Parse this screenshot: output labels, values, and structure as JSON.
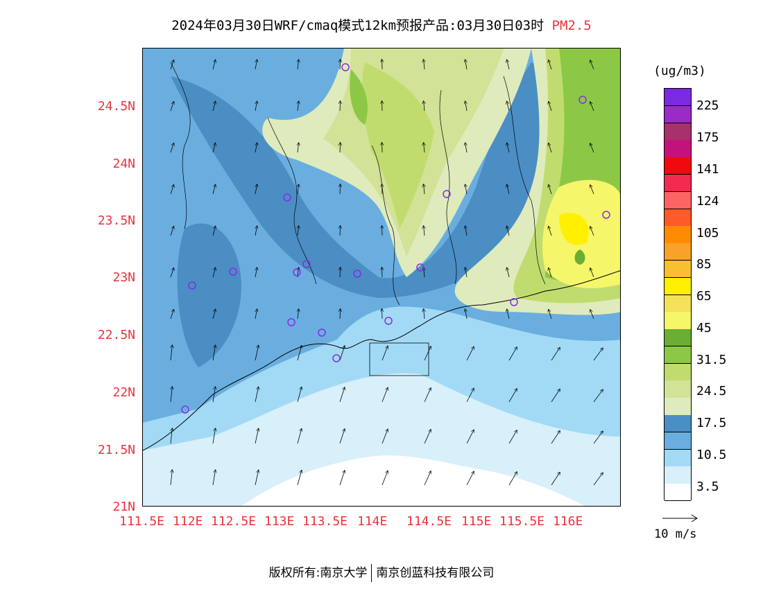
{
  "title": {
    "main": "2024年03月30日WRF/cmaq模式12km预报产品:03月30日03时",
    "pollutant": "PM2.5"
  },
  "axes": {
    "lat_labels": [
      "24.5N",
      "24N",
      "23.5N",
      "23N",
      "22.5N",
      "22N",
      "21.5N",
      "21N"
    ],
    "lon_labels": [
      "111.5E",
      "112E",
      "112.5E",
      "113E",
      "113.5E",
      "114E",
      "114.5E",
      "115E",
      "115.5E",
      "116E"
    ]
  },
  "colorbar": {
    "unit": "(ug/m3)",
    "labels": [
      "225",
      "175",
      "141",
      "124",
      "105",
      "85",
      "65",
      "45",
      "31.5",
      "24.5",
      "17.5",
      "10.5",
      "3.5"
    ],
    "colors": [
      "#7a2be0",
      "#9a2bc8",
      "#a8306c",
      "#c4127c",
      "#f00a10",
      "#f42a50",
      "#ff6464",
      "#ff5a2a",
      "#ff8c00",
      "#f8a22a",
      "#f8bf30",
      "#fff000",
      "#f5e05a",
      "#f6f66a",
      "#6aae34",
      "#8cc846",
      "#c0dc6e",
      "#d2e296",
      "#dfebbc",
      "#4a8ec4",
      "#6aaee0",
      "#a2daf6",
      "#d8f0fa",
      "#ffffff"
    ]
  },
  "wind_legend": {
    "label": "10 m/s"
  },
  "footer": {
    "copyright": "版权所有:南京大学",
    "company": "南京创蓝科技有限公司"
  },
  "stations_icon": "station-circle-icon"
}
